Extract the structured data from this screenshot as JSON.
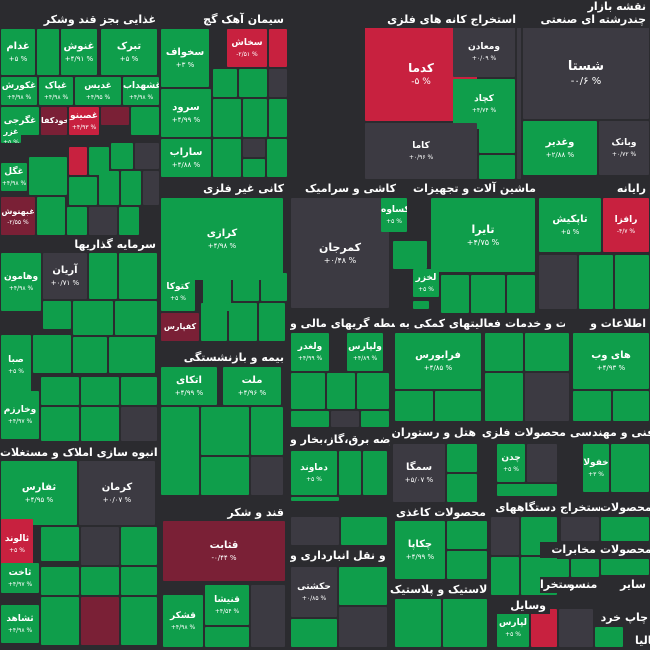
{
  "title": "نقشه بازار",
  "colors": {
    "bg": "#2b2b2f",
    "neutral": "#3c3a42",
    "green_dark": "#128a46",
    "green": "#0f9e4b",
    "green_light": "#19b257",
    "red": "#c8213f",
    "red_dark": "#7a2036"
  },
  "sectors": [
    {
      "label": "غذایی بجز قند وشکر"
    },
    {
      "label": "سیمان آهک گچ"
    },
    {
      "label": "استخراج کانه های فلزی"
    },
    {
      "label": "چندرشته ای صنعتی"
    },
    {
      "label": "کانی غیر فلزی"
    },
    {
      "label": "کاشی و سرامیک"
    },
    {
      "label": "ماشین آلات و تجهیزات"
    },
    {
      "label": "رایانه"
    },
    {
      "label": "سرمایه گذاریها"
    },
    {
      "label": "واسطه گریهای مالی و"
    },
    {
      "label": "فعالیتهای کمکی به"
    },
    {
      "label": "زراعت و خدمات"
    },
    {
      "label": "اطلاعات و"
    },
    {
      "label": "بیمه و بازنشستگی"
    },
    {
      "label": "عرضه برق،گاز،بخار و"
    },
    {
      "label": "هتل و رستوران"
    },
    {
      "label": "محصولات فلزی"
    },
    {
      "label": "فنی و مهندسی"
    },
    {
      "label": "انبوه سازی املاک و مستغلات"
    },
    {
      "label": "قند و شکر"
    },
    {
      "label": "محصولات کاغذی"
    },
    {
      "label": "استخراج"
    },
    {
      "label": "دستگاههای"
    },
    {
      "label": "محصولات"
    },
    {
      "label": "حمل و نقل انبارداری و"
    },
    {
      "label": "مخابرات"
    },
    {
      "label": "محصولات"
    },
    {
      "label": "لاستیک و پلاستیک"
    },
    {
      "label": "سایر"
    },
    {
      "label": "منسوج"
    },
    {
      "label": "استخرا"
    },
    {
      "label": "وسایل"
    },
    {
      "label": "چاپ"
    },
    {
      "label": "خرد"
    },
    {
      "label": "فعالیا"
    }
  ],
  "tiles": [
    {
      "name": "غدام",
      "change": "+۵ %",
      "status": "up"
    },
    {
      "name": "غنوش",
      "change": "+۴/۹۱ %",
      "status": "up"
    },
    {
      "name": "تبرک",
      "change": "+۵ %",
      "status": "up"
    },
    {
      "name": "غکورش",
      "change": "+۴/۹۸ %",
      "status": "up"
    },
    {
      "name": "غپاک",
      "change": "+۴/۹۸ %",
      "status": "up"
    },
    {
      "name": "غدیس",
      "change": "+۴/۹۵ %",
      "status": "up"
    },
    {
      "name": "غشهداب",
      "change": "+۴/۹۸ %",
      "status": "up"
    },
    {
      "name": "غگرجی",
      "change": "",
      "status": "up"
    },
    {
      "name": "خودکفا",
      "change": "",
      "status": "down_dark"
    },
    {
      "name": "غصینو",
      "change": "+۴/۹۳ %",
      "status": "down"
    },
    {
      "name": "غزر",
      "change": "+۵ %",
      "status": "up"
    },
    {
      "name": "غگل",
      "change": "+۴/۹۸ %",
      "status": "up"
    },
    {
      "name": "غبهنوش",
      "change": "-۲/۵۵ %",
      "status": "down_dark"
    },
    {
      "name": "سخواف",
      "change": "+۳ %",
      "status": "up"
    },
    {
      "name": "سخاش",
      "change": "-۲/۵۱ %",
      "status": "down"
    },
    {
      "name": "سرود",
      "change": "+۴/۹۹ %",
      "status": "up"
    },
    {
      "name": "ساراب",
      "change": "+۴/۸۸ %",
      "status": "up"
    },
    {
      "name": "کدما",
      "change": "-۵ %",
      "status": "down"
    },
    {
      "name": "ومعادن",
      "change": "+۰/۰۹ %",
      "status": "neutral"
    },
    {
      "name": "کچاد",
      "change": "+۴/۷۴ %",
      "status": "up"
    },
    {
      "name": "کاما",
      "change": "+۰/۹۶ %",
      "status": "neutral"
    },
    {
      "name": "شستا",
      "change": "-۰/۶ %",
      "status": "neutral"
    },
    {
      "name": "وغدیر",
      "change": "+۲/۸۸ %",
      "status": "up"
    },
    {
      "name": "وبانک",
      "change": "+۰/۷۲ %",
      "status": "neutral"
    },
    {
      "name": "کرازی",
      "change": "+۴/۹۸ %",
      "status": "up"
    },
    {
      "name": "کتوکا",
      "change": "+۵ %",
      "status": "up"
    },
    {
      "name": "کفپارس",
      "change": "",
      "status": "down_dark"
    },
    {
      "name": "کمرجان",
      "change": "+۰/۴۸ %",
      "status": "neutral"
    },
    {
      "name": "کساوه",
      "change": "+۵ %",
      "status": "up"
    },
    {
      "name": "تایرا",
      "change": "+۴/۷۵ %",
      "status": "up"
    },
    {
      "name": "لخزر",
      "change": "+۵ %",
      "status": "up"
    },
    {
      "name": "تاپکیش",
      "change": "+۵ %",
      "status": "up"
    },
    {
      "name": "رافزا",
      "change": "-۴/۷ %",
      "status": "down"
    },
    {
      "name": "آریان",
      "change": "+۰/۷۱ %",
      "status": "neutral"
    },
    {
      "name": "وهامون",
      "change": "+۴/۹۸ %",
      "status": "up"
    },
    {
      "name": "صبا",
      "change": "+۵ %",
      "status": "up"
    },
    {
      "name": "وخارزم",
      "change": "+۴/۹۷ %",
      "status": "up"
    },
    {
      "name": "ولغدر",
      "change": "+۴/۹۹ %",
      "status": "up"
    },
    {
      "name": "ولپارس",
      "change": "+۴/۸۹ %",
      "status": "up"
    },
    {
      "name": "فرابورس",
      "change": "+۴/۸۵ %",
      "status": "up"
    },
    {
      "name": "های وب",
      "change": "+۴/۹۳ %",
      "status": "up"
    },
    {
      "name": "اتکای",
      "change": "+۴/۹۹ %",
      "status": "up"
    },
    {
      "name": "ملت",
      "change": "+۴/۹۶ %",
      "status": "up"
    },
    {
      "name": "دماوند",
      "change": "+۵ %",
      "status": "up"
    },
    {
      "name": "سمگا",
      "change": "+۵/۰۷ %",
      "status": "neutral"
    },
    {
      "name": "چدن",
      "change": "+۵ %",
      "status": "up"
    },
    {
      "name": "خفولا",
      "change": "+۳ %",
      "status": "up"
    },
    {
      "name": "ثفارس",
      "change": "+۴/۹۵ %",
      "status": "up"
    },
    {
      "name": "کرمان",
      "change": "+۰/۰۷ %",
      "status": "neutral"
    },
    {
      "name": "ثالوند",
      "change": "+۵ %",
      "status": "down"
    },
    {
      "name": "ثاخت",
      "change": "+۴/۹۷ %",
      "status": "up"
    },
    {
      "name": "ثشاهد",
      "change": "+۴/۹۸ %",
      "status": "up"
    },
    {
      "name": "قثابت",
      "change": "-۰/۴۴ %",
      "status": "down_dark"
    },
    {
      "name": "قنیشا",
      "change": "+۴/۵۴ %",
      "status": "up"
    },
    {
      "name": "قشکر",
      "change": "+۴/۹۸ %",
      "status": "up"
    },
    {
      "name": "چکاپا",
      "change": "+۴/۹۹ %",
      "status": "up"
    },
    {
      "name": "حکشتی",
      "change": "+۰/۸۵ %",
      "status": "neutral"
    },
    {
      "name": "لپارس",
      "change": "+۵ %",
      "status": "up"
    }
  ]
}
